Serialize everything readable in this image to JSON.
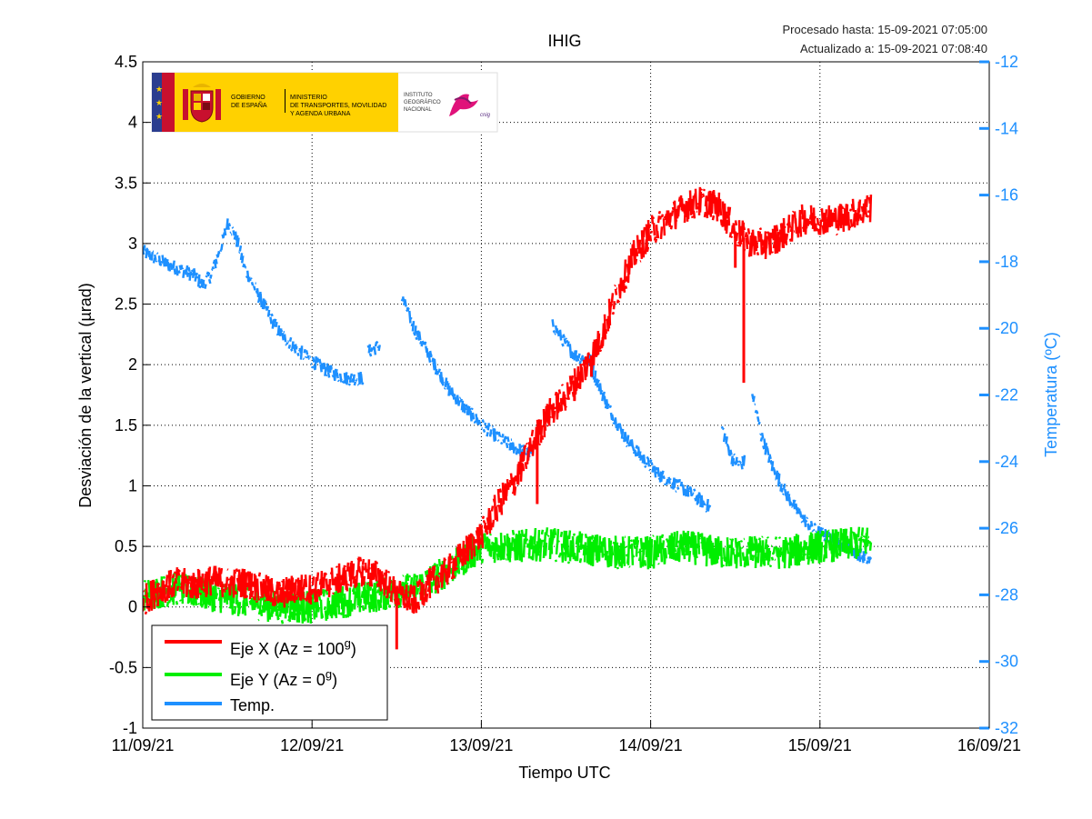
{
  "header": {
    "processed": "Procesado hasta: 15-09-2021 07:05:00",
    "updated": "Actualizado a: 15-09-2021 07:08:40"
  },
  "logo": {
    "gob1": "GOBIERNO",
    "gob2": "DE ESPAÑA",
    "min1": "MINISTERIO",
    "min2": "DE TRANSPORTES, MOVILIDAD",
    "min3": "Y AGENDA URBANA",
    "ign1": "INSTITUTO",
    "ign2": "GEOGRÁFICO",
    "ign3": "NACIONAL",
    "ign4": "cnig"
  },
  "colors": {
    "x": "#ff0000",
    "y": "#00ee00",
    "temp": "#1e90ff",
    "right_axis": "#1e90ff"
  },
  "chart_data": {
    "type": "line",
    "title": "IHIG",
    "xlabel": "Tiempo UTC",
    "ylabel": "Desviación de la vertical (µrad)",
    "y2label": "Temperatura (ºC)",
    "x_ticks": [
      "11/09/21",
      "12/09/21",
      "13/09/21",
      "14/09/21",
      "15/09/21",
      "16/09/21"
    ],
    "xlim": [
      "2021-09-11",
      "2021-09-16"
    ],
    "ylim": [
      -1,
      4.5
    ],
    "y_ticks": [
      "-1",
      "-0.5",
      "0",
      "0.5",
      "1",
      "1.5",
      "2",
      "2.5",
      "3",
      "3.5",
      "4",
      "4.5"
    ],
    "y2lim": [
      -32,
      -12
    ],
    "y2_ticks": [
      "-32",
      "-30",
      "-28",
      "-26",
      "-24",
      "-22",
      "-20",
      "-18",
      "-16",
      "-14",
      "-12"
    ],
    "grid": true,
    "legend": {
      "position": "bottom-left",
      "entries": [
        {
          "label": "Eje X (Az = 100",
          "sup": "g",
          "tail": ")"
        },
        {
          "label": "Eje Y (Az = 0",
          "sup": "g",
          "tail": ")"
        },
        {
          "label": "Temp.",
          "sup": "",
          "tail": ""
        }
      ]
    },
    "series": [
      {
        "name": "Eje X (Az = 100g)",
        "axis": "left",
        "x": [
          0,
          0.1,
          0.2,
          0.3,
          0.4,
          0.5,
          0.6,
          0.7,
          0.8,
          0.9,
          1.0,
          1.1,
          1.2,
          1.3,
          1.4,
          1.5,
          1.6,
          1.7,
          1.8,
          1.9,
          2.0,
          2.1,
          2.2,
          2.3,
          2.4,
          2.5,
          2.6,
          2.7,
          2.8,
          2.9,
          3.0,
          3.1,
          3.2,
          3.3,
          3.4,
          3.5,
          3.6,
          3.7,
          3.8,
          3.9,
          4.0,
          4.1,
          4.2,
          4.3
        ],
        "y": [
          0.05,
          0.15,
          0.2,
          0.18,
          0.22,
          0.2,
          0.2,
          0.15,
          0.1,
          0.15,
          0.15,
          0.2,
          0.25,
          0.3,
          0.25,
          0.1,
          0.05,
          0.2,
          0.3,
          0.45,
          0.6,
          0.85,
          1.05,
          1.35,
          1.6,
          1.75,
          1.95,
          2.2,
          2.6,
          2.9,
          3.1,
          3.2,
          3.3,
          3.35,
          3.3,
          3.1,
          3.0,
          3.0,
          3.1,
          3.2,
          3.2,
          3.2,
          3.25,
          3.3
        ],
        "spread": 0.13,
        "drops": [
          {
            "x": 2.33,
            "to": 0.85
          },
          {
            "x": 2.39,
            "to": 1.55
          },
          {
            "x": 2.55,
            "to": 1.7
          },
          {
            "x": 2.65,
            "to": 1.9
          },
          {
            "x": 3.55,
            "to": 1.85
          },
          {
            "x": 3.5,
            "to": 2.8
          },
          {
            "x": 1.5,
            "to": -0.35
          }
        ]
      },
      {
        "name": "Eje Y (Az = 0g)",
        "axis": "left",
        "x": [
          0,
          0.2,
          0.4,
          0.6,
          0.8,
          1.0,
          1.2,
          1.4,
          1.6,
          1.8,
          2.0,
          2.2,
          2.4,
          2.6,
          2.8,
          3.0,
          3.2,
          3.4,
          3.6,
          3.8,
          4.0,
          4.2,
          4.3
        ],
        "y": [
          0.1,
          0.15,
          0.1,
          0.05,
          0.0,
          0.0,
          0.05,
          0.1,
          0.15,
          0.3,
          0.5,
          0.5,
          0.52,
          0.48,
          0.45,
          0.45,
          0.5,
          0.45,
          0.45,
          0.45,
          0.5,
          0.52,
          0.55
        ],
        "spread": 0.14
      },
      {
        "name": "Temp.",
        "axis": "right",
        "segments": [
          {
            "x": [
              0,
              0.15,
              0.3,
              0.35,
              0.4,
              0.47,
              0.5,
              0.55,
              0.6,
              0.7,
              0.8,
              0.9,
              1.0,
              1.1,
              1.2,
              1.3
            ],
            "y": [
              -17.7,
              -18.1,
              -18.4,
              -18.7,
              -18.4,
              -17.4,
              -16.8,
              -17.3,
              -18.2,
              -19.2,
              -20.1,
              -20.6,
              -21.0,
              -21.3,
              -21.5,
              -21.5
            ]
          },
          {
            "x": [
              1.33,
              1.4
            ],
            "y": [
              -20.7,
              -20.5
            ]
          },
          {
            "x": [
              1.53,
              1.6,
              1.7,
              1.8,
              1.9,
              2.0,
              2.1,
              2.2,
              2.3
            ],
            "y": [
              -19.1,
              -20.0,
              -20.9,
              -21.8,
              -22.4,
              -22.9,
              -23.3,
              -23.6,
              -23.8
            ]
          },
          {
            "x": [
              2.42,
              2.5,
              2.55,
              2.6,
              2.65
            ],
            "y": [
              -19.9,
              -20.5,
              -20.8,
              -20.9,
              -21.0
            ]
          },
          {
            "x": [
              2.65,
              2.75,
              2.85,
              2.95,
              3.05,
              3.15,
              3.25,
              3.35
            ],
            "y": [
              -21.2,
              -22.4,
              -23.3,
              -23.9,
              -24.4,
              -24.7,
              -25.0,
              -25.4
            ]
          },
          {
            "x": [
              3.42,
              3.45,
              3.48,
              3.52,
              3.55
            ],
            "y": [
              -23.0,
              -23.5,
              -23.9,
              -24.1,
              -24.0
            ]
          },
          {
            "x": [
              3.6,
              3.65,
              3.72,
              3.8,
              3.88,
              3.95,
              4.02,
              4.1,
              4.2,
              4.3
            ],
            "y": [
              -22.0,
              -23.2,
              -24.2,
              -25.0,
              -25.6,
              -26.0,
              -26.2,
              -26.4,
              -26.7,
              -27.0
            ]
          }
        ],
        "spread": 0.22
      }
    ]
  }
}
